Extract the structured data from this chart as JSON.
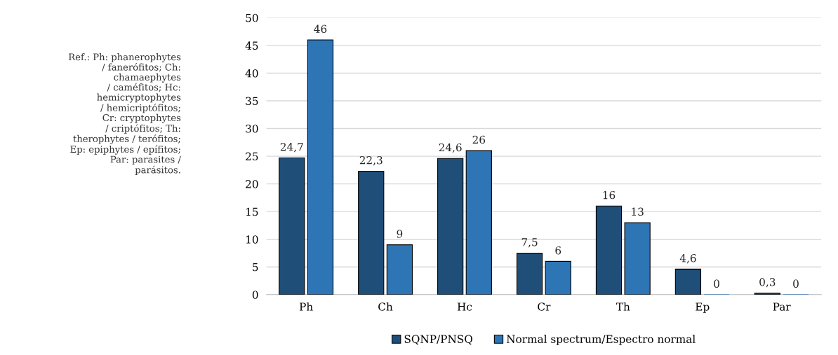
{
  "chart_data": {
    "type": "bar",
    "categories": [
      "Ph",
      "Ch",
      "Hc",
      "Cr",
      "Th",
      "Ep",
      "Par"
    ],
    "series": [
      {
        "name": "SQNP/PNSQ",
        "color": "#1f4e79",
        "values": [
          24.7,
          22.3,
          24.6,
          7.5,
          16,
          4.6,
          0.3
        ],
        "value_labels": [
          "24,7",
          "22,3",
          "24,6",
          "7,5",
          "16",
          "4,6",
          "0,3"
        ]
      },
      {
        "name": "Normal spectrum/Espectro normal",
        "color": "#2e75b6",
        "values": [
          46,
          9,
          26,
          6,
          13,
          0,
          0
        ],
        "value_labels": [
          "46",
          "9",
          "26",
          "6",
          "13",
          "0",
          "0"
        ]
      }
    ],
    "ylim": [
      0,
      50
    ],
    "yticks": [
      0,
      5,
      10,
      15,
      20,
      25,
      30,
      35,
      40,
      45,
      50
    ],
    "grid": "y",
    "legend": "bottom",
    "annotations": [
      "Ref.: Ph: phanerophytes\n/ fanerófitos; Ch:\nchamaephytes\n/ caméfitos; Hc:\nhemicryptophytes\n/ hemicriptófitos;\nCr: cryptophytes\n/ criptófitos; Th:\ntherophytes / terófitos;\nEp: epiphytes / epífitos;\nPar: parasites /\nparásitos."
    ]
  }
}
